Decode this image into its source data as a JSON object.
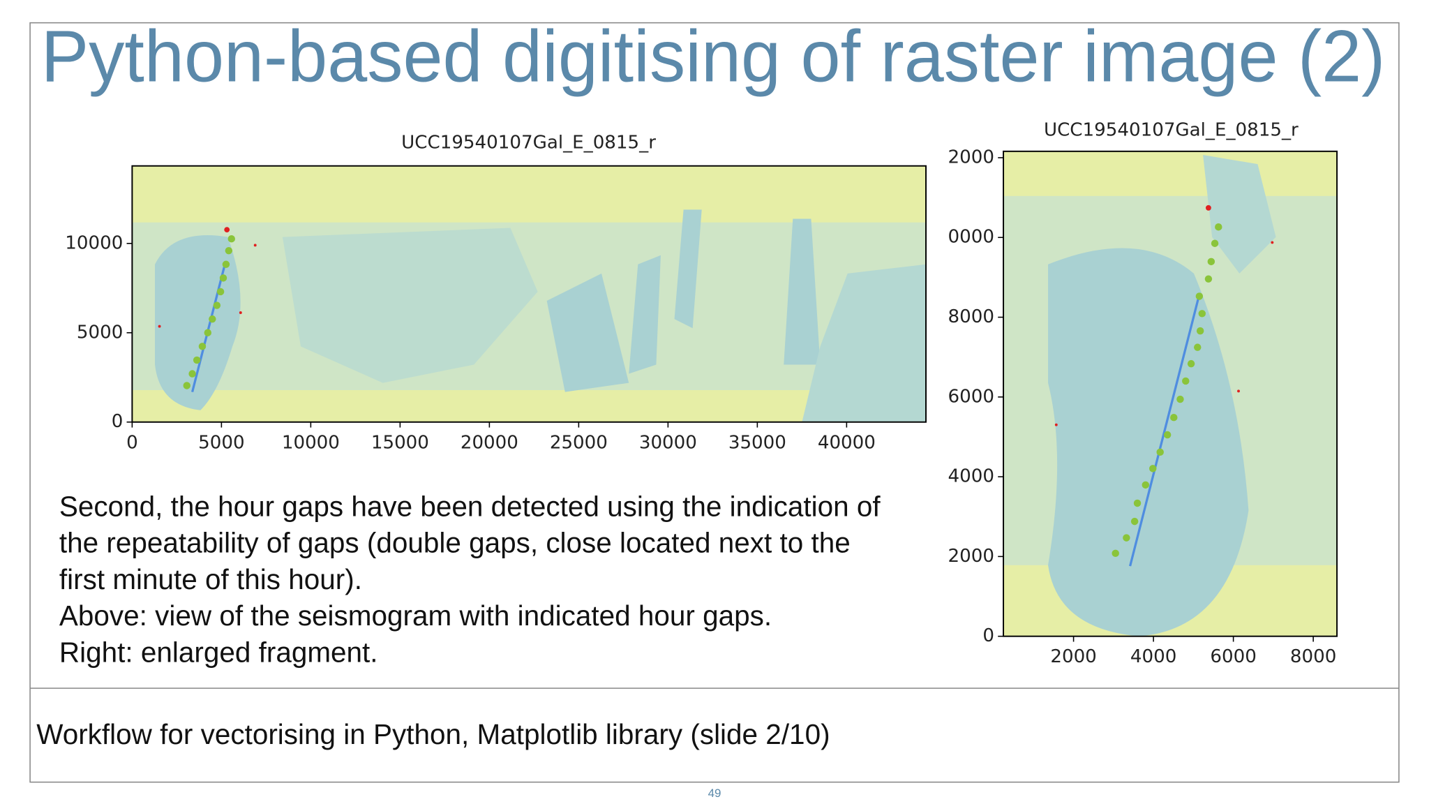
{
  "title": "Python-based digitising of raster image (2)",
  "figures": [
    {
      "title": "UCC19540107Gal_E_0815_r",
      "xlim": [
        0,
        44440
      ],
      "ylim": [
        0,
        14340
      ],
      "xticks": [
        0,
        5000,
        10000,
        15000,
        20000,
        25000,
        30000,
        35000,
        40000
      ],
      "yticks": [
        0,
        5000,
        10000
      ]
    },
    {
      "title": "UCC19540107Gal_E_0815_r",
      "xlim": [
        244,
        8593
      ],
      "ylim": [
        0,
        12160
      ],
      "xticks": [
        2000,
        4000,
        6000,
        8000
      ],
      "yticks": [
        0,
        2000,
        4000,
        6000,
        8000,
        {
          "value": 10000,
          "label": "0000"
        },
        {
          "value": 12000,
          "label": "2000"
        }
      ]
    }
  ],
  "body": [
    "Second, the hour gaps have been detected using the indication of",
    "the repeatability of gaps (double gaps, close located next to the",
    "first minute of this hour).",
    "Above: view of the seismogram with indicated hour gaps.",
    "Right: enlarged fragment."
  ],
  "caption": "Workflow for vectorising in Python, Matplotlib library (slide 2/10)",
  "page_number": "49"
}
